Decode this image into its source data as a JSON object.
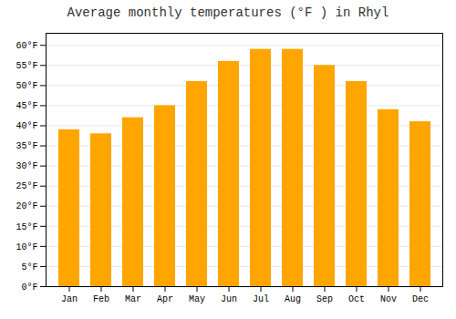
{
  "chart_data": {
    "type": "bar",
    "title": "Average monthly temperatures (°F ) in Rhyl",
    "categories": [
      "Jan",
      "Feb",
      "Mar",
      "Apr",
      "May",
      "Jun",
      "Jul",
      "Aug",
      "Sep",
      "Oct",
      "Nov",
      "Dec"
    ],
    "values": [
      39,
      38,
      42,
      45,
      51,
      56,
      59,
      59,
      55,
      51,
      44,
      41
    ],
    "color": "#FFA500",
    "ylim": [
      0,
      63
    ],
    "yticks": [
      {
        "value": 0,
        "label": "0°F"
      },
      {
        "value": 5,
        "label": "5°F"
      },
      {
        "value": 10,
        "label": "10°F"
      },
      {
        "value": 15,
        "label": "15°F"
      },
      {
        "value": 20,
        "label": "20°F"
      },
      {
        "value": 25,
        "label": "25°F"
      },
      {
        "value": 30,
        "label": "30°F"
      },
      {
        "value": 35,
        "label": "35°F"
      },
      {
        "value": 40,
        "label": "40°F"
      },
      {
        "value": 45,
        "label": "45°F"
      },
      {
        "value": 50,
        "label": "50°F"
      },
      {
        "value": 55,
        "label": "55°F"
      },
      {
        "value": 60,
        "label": "60°F"
      }
    ],
    "grid": true
  }
}
